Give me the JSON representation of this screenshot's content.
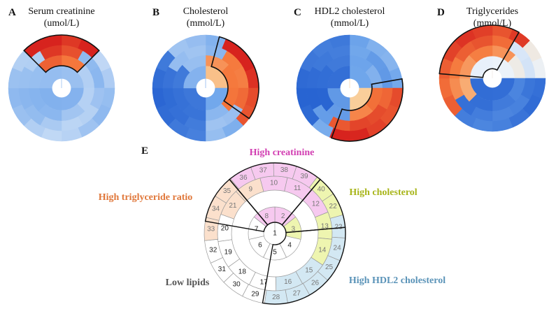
{
  "panels": [
    {
      "letter": "A",
      "title_line1": "Serum creatinine",
      "title_line2": "(umol/L)"
    },
    {
      "letter": "B",
      "title_line1": "Cholesterol",
      "title_line2": "(mmol/L)"
    },
    {
      "letter": "C",
      "title_line1": "HDL2 cholesterol",
      "title_line2": "(mmol/L)"
    },
    {
      "letter": "D",
      "title_line1": "Triglycerides",
      "title_line2": "(mmol/L)"
    }
  ],
  "map": {
    "letter": "E",
    "cells": [
      "1",
      "2",
      "3",
      "4",
      "5",
      "6",
      "7",
      "8",
      "9",
      "10",
      "11",
      "12",
      "13",
      "14",
      "15",
      "16",
      "17",
      "18",
      "19",
      "20",
      "21",
      "22",
      "23",
      "24",
      "25",
      "26",
      "27",
      "28",
      "29",
      "30",
      "31",
      "32",
      "33",
      "34",
      "35",
      "36",
      "37",
      "38",
      "39",
      "40"
    ],
    "groups": [
      {
        "label": "High creatinine",
        "color": "#d23fb2"
      },
      {
        "label": "High cholesterol",
        "color": "#a8b51a"
      },
      {
        "label": "High triglyceride ratio",
        "color": "#e0773a"
      },
      {
        "label": "High HDL2 cholesterol",
        "color": "#5a93b8"
      },
      {
        "label": "Low lipids",
        "color": "#555555"
      }
    ],
    "group_colors": {
      "creatinine": "#f6c9ef",
      "cholesterol": "#eef5b0",
      "triglyceride": "#fbe0cc",
      "hdl2": "#d3e8f3",
      "lowlipids": "#ffffff"
    }
  }
}
